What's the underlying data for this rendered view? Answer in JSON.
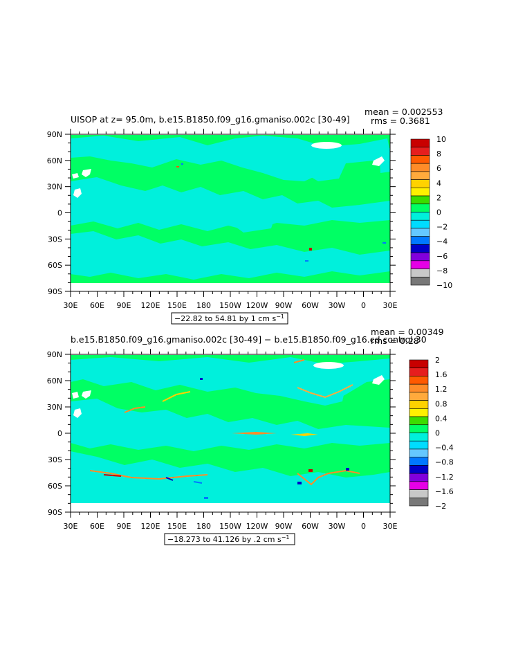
{
  "chart_data": [
    {
      "type": "heatmap",
      "title": "UISOP at z=  95.0m, b.e15.B1850.f09_g16.gmaniso.002c [30-49]",
      "stats": [
        "mean = 0.002553",
        "rms = 0.3681"
      ],
      "x_ticks": [
        "30E",
        "60E",
        "90E",
        "120E",
        "150E",
        "180",
        "150W",
        "120W",
        "90W",
        "60W",
        "30W",
        "0",
        "30E"
      ],
      "y_ticks": [
        "90N",
        "60N",
        "30N",
        "0",
        "30S",
        "60S",
        "90S"
      ],
      "range_label": "−22.82 to 54.81 by 1 cm s",
      "range_unit_exp": "−1",
      "colorbar": {
        "labels": [
          "10",
          "8",
          "6",
          "4",
          "2",
          "0",
          "−2",
          "−4",
          "−6",
          "−8",
          "−10"
        ],
        "levels": [
          10,
          9,
          8,
          7,
          6,
          5,
          4,
          3,
          2,
          1,
          0,
          -1,
          -2,
          -3,
          -4,
          -5,
          -6,
          -7,
          -8,
          -9,
          -10
        ]
      }
    },
    {
      "type": "heatmap",
      "title": "b.e15.B1850.f09_g16.gmaniso.002c [30-49] − b.e15.B1850.f09_g16.cd control.30",
      "stats": [
        "mean = 0.00349",
        "rms = 0.28"
      ],
      "x_ticks": [
        "30E",
        "60E",
        "90E",
        "120E",
        "150E",
        "180",
        "150W",
        "120W",
        "90W",
        "60W",
        "30W",
        "0",
        "30E"
      ],
      "y_ticks": [
        "90N",
        "60N",
        "30N",
        "0",
        "30S",
        "60S",
        "90S"
      ],
      "range_label": "−18.273 to 41.126 by .2 cm s",
      "range_unit_exp": "−1",
      "colorbar": {
        "labels": [
          "2",
          "1.6",
          "1.2",
          "0.8",
          "0.4",
          "0",
          "−0.4",
          "−0.8",
          "−1.2",
          "−1.6",
          "−2"
        ],
        "levels": [
          2,
          1.8,
          1.6,
          1.4,
          1.2,
          1.0,
          0.8,
          0.6,
          0.4,
          0.2,
          0,
          -0.2,
          -0.4,
          -0.6,
          -0.8,
          -1.0,
          -1.2,
          -1.4,
          -1.6,
          -1.8,
          -2
        ]
      }
    }
  ],
  "palette": [
    "#c80000",
    "#e61e1e",
    "#ff5a00",
    "#ff8c28",
    "#ffaa3c",
    "#ffd200",
    "#fff000",
    "#3cdc00",
    "#00ff64",
    "#00f0dc",
    "#00dcff",
    "#64c8ff",
    "#0078ff",
    "#0000c8",
    "#8200dc",
    "#e600e6",
    "#c8c8c8",
    "#787878"
  ],
  "colors": {
    "positive_weak": "#00ff64",
    "negative_weak": "#00f0dc",
    "land": "#ffffff"
  }
}
